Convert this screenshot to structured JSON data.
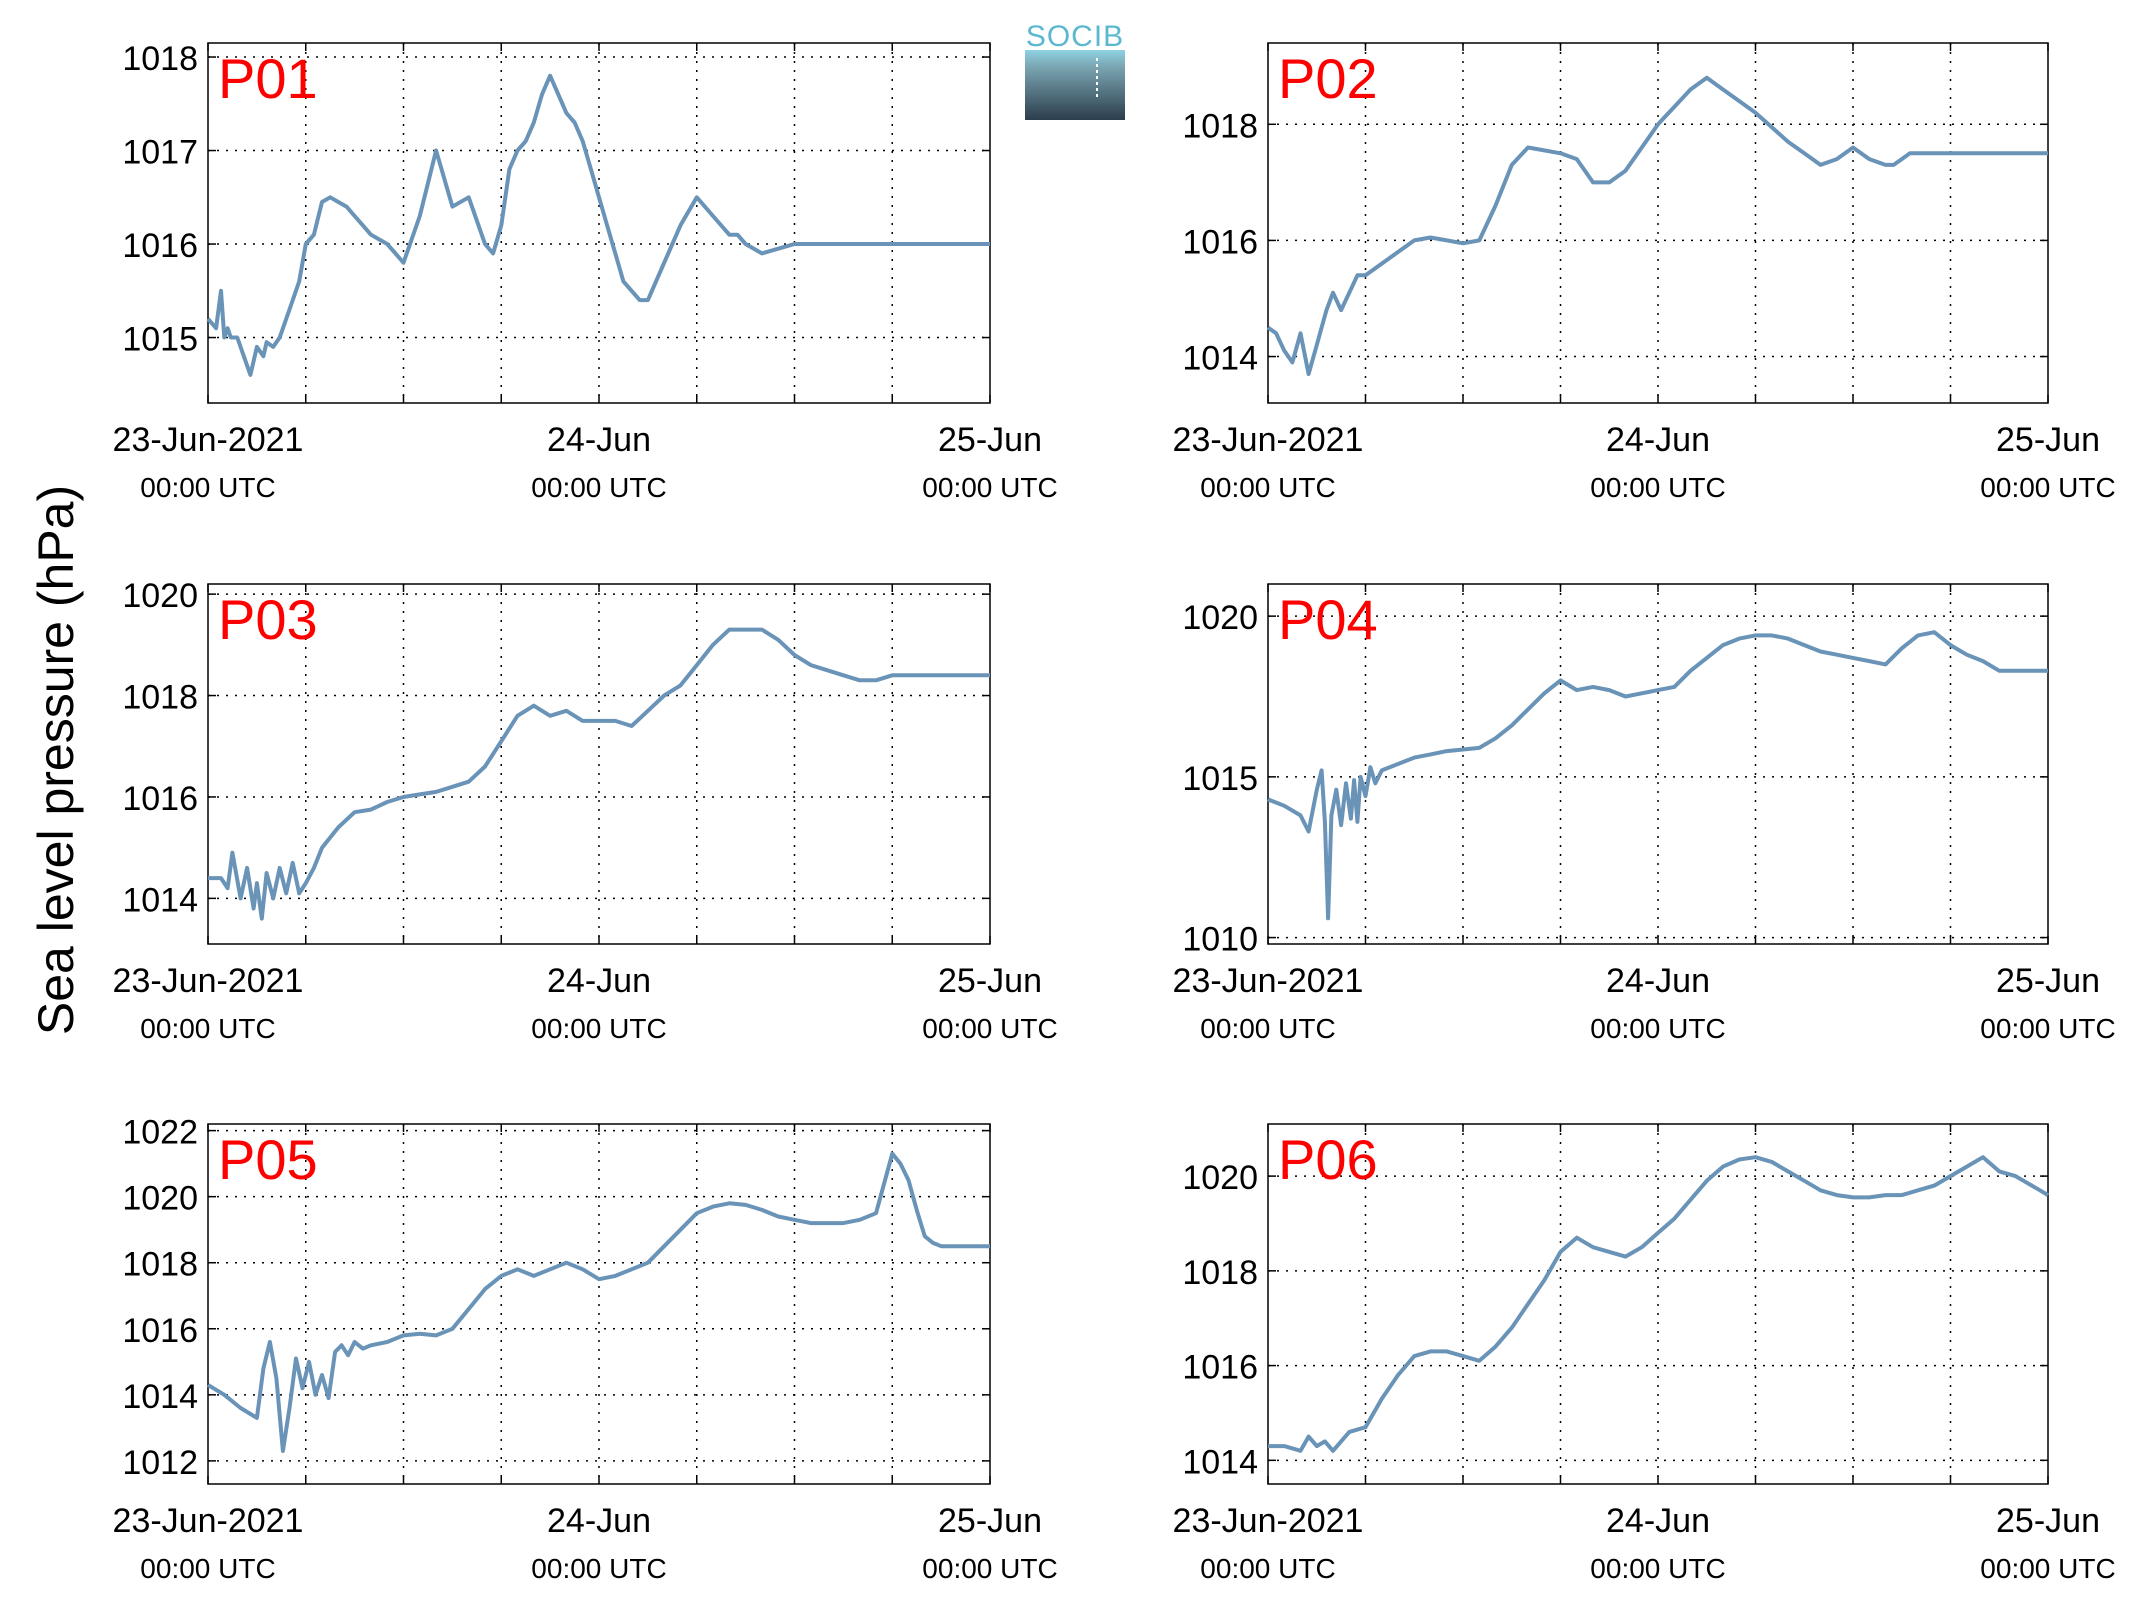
{
  "figure": {
    "ylabel": "Sea level pressure (hPa)",
    "logo_text": "SOCIB",
    "colors": {
      "line": "#6a93b8",
      "station_label": "#ff0000",
      "grid": "#000000"
    }
  },
  "chart_data": [
    {
      "type": "line",
      "title": "P01",
      "xlim": [
        0,
        48
      ],
      "ylim": [
        1014.3,
        1018.15
      ],
      "yticks": [
        1015,
        1016,
        1017,
        1018
      ],
      "xticks": [
        0,
        6,
        12,
        18,
        24,
        30,
        36,
        42,
        48
      ],
      "xticklabels": [
        {
          "x": 0,
          "date": "23-Jun-2021",
          "time": "00:00 UTC"
        },
        {
          "x": 24,
          "date": "24-Jun",
          "time": "00:00 UTC"
        },
        {
          "x": 48,
          "date": "25-Jun",
          "time": "00:00 UTC"
        }
      ],
      "grid": true,
      "series": [
        {
          "x": [
            0,
            0.5,
            0.8,
            1,
            1.2,
            1.4,
            1.8,
            2.2,
            2.6,
            3,
            3.4,
            3.6,
            4,
            4.4,
            5,
            5.6,
            6,
            6.5,
            7,
            7.5,
            8,
            8.5,
            9,
            9.5,
            10,
            11,
            12,
            13,
            14,
            15,
            16,
            17,
            17.5,
            18,
            18.5,
            19,
            19.5,
            20,
            20.5,
            21,
            21.5,
            22,
            22.5,
            23,
            23.5,
            24,
            24.5,
            25,
            25.5,
            26,
            26.5,
            27,
            28,
            29,
            30,
            31,
            32,
            32.5,
            33,
            34,
            35,
            36,
            37,
            38,
            38.5,
            39,
            39.5,
            40,
            40.5,
            41,
            42,
            43,
            44,
            45,
            46,
            46.5,
            47,
            47.5,
            48
          ],
          "y": [
            1015.2,
            1015.1,
            1015.5,
            1015.0,
            1015.1,
            1015.0,
            1015.0,
            1014.8,
            1014.6,
            1014.9,
            1014.8,
            1014.95,
            1014.9,
            1015.0,
            1015.3,
            1015.6,
            1016.0,
            1016.1,
            1016.45,
            1016.5,
            1016.45,
            1016.4,
            1016.3,
            1016.2,
            1016.1,
            1016.0,
            1015.8,
            1016.3,
            1017.0,
            1016.4,
            1016.5,
            1016.0,
            1015.9,
            1016.2,
            1016.8,
            1017.0,
            1017.1,
            1017.3,
            1017.6,
            1017.8,
            1017.6,
            1017.4,
            1017.3,
            1017.1,
            1016.8,
            1016.5,
            1016.2,
            1015.9,
            1015.6,
            1015.5,
            1015.4,
            1015.4,
            1015.8,
            1016.2,
            1016.5,
            1016.3,
            1016.1,
            1016.1,
            1016.0,
            1015.9,
            1015.95,
            1016.0,
            1016.0,
            1016.0,
            1016.0,
            1016.0,
            1016.0,
            1016.0,
            1016.0,
            1016.0,
            1016.0,
            1016.0,
            1016.0,
            1016.0,
            1016.0,
            1016.0,
            1016.0,
            1016.0,
            1016.0
          ]
        }
      ]
    },
    {
      "type": "line",
      "title": "P02",
      "xlim": [
        0,
        48
      ],
      "ylim": [
        1013.2,
        1019.4
      ],
      "yticks": [
        1014,
        1016,
        1018
      ],
      "xticks": [
        0,
        6,
        12,
        18,
        24,
        30,
        36,
        42,
        48
      ],
      "xticklabels": [
        {
          "x": 0,
          "date": "23-Jun-2021",
          "time": "00:00 UTC"
        },
        {
          "x": 24,
          "date": "24-Jun",
          "time": "00:00 UTC"
        },
        {
          "x": 48,
          "date": "25-Jun",
          "time": "00:00 UTC"
        }
      ],
      "grid": true,
      "series": [
        {
          "x": [
            0,
            0.5,
            1,
            1.5,
            2,
            2.5,
            3,
            3.3,
            3.6,
            4,
            4.5,
            5,
            5.5,
            6,
            6.5,
            7,
            8,
            9,
            10,
            11,
            12,
            13,
            14,
            15,
            16,
            17,
            18,
            19,
            20,
            21,
            22,
            23,
            24,
            25,
            26,
            27,
            28,
            29,
            30,
            31,
            32,
            33,
            34,
            35,
            36,
            37,
            38,
            38.5,
            39,
            39.5,
            40,
            40.5,
            41,
            41.5,
            42,
            42.5,
            43,
            43.5,
            44,
            44.5,
            45,
            45.5,
            46,
            46.5,
            47,
            47.5,
            48
          ],
          "y": [
            1014.5,
            1014.4,
            1014.1,
            1013.9,
            1014.4,
            1013.7,
            1014.2,
            1014.5,
            1014.8,
            1015.1,
            1014.8,
            1015.1,
            1015.4,
            1015.4,
            1015.5,
            1015.6,
            1015.8,
            1016.0,
            1016.05,
            1016.0,
            1015.95,
            1016.0,
            1016.6,
            1017.3,
            1017.6,
            1017.55,
            1017.5,
            1017.4,
            1017.0,
            1017.0,
            1017.2,
            1017.6,
            1018.0,
            1018.3,
            1018.6,
            1018.8,
            1018.6,
            1018.4,
            1018.2,
            1017.95,
            1017.7,
            1017.5,
            1017.3,
            1017.4,
            1017.6,
            1017.4,
            1017.3,
            1017.3,
            1017.4,
            1017.5,
            1017.5,
            1017.5,
            1017.5,
            1017.5,
            1017.5,
            1017.5,
            1017.5,
            1017.5,
            1017.5,
            1017.5,
            1017.5,
            1017.5,
            1017.5,
            1017.5,
            1017.5,
            1017.5,
            1017.5
          ]
        }
      ]
    },
    {
      "type": "line",
      "title": "P03",
      "xlim": [
        0,
        48
      ],
      "ylim": [
        1013.1,
        1020.2
      ],
      "yticks": [
        1014,
        1016,
        1018,
        1020
      ],
      "xticks": [
        0,
        6,
        12,
        18,
        24,
        30,
        36,
        42,
        48
      ],
      "xticklabels": [
        {
          "x": 0,
          "date": "23-Jun-2021",
          "time": "00:00 UTC"
        },
        {
          "x": 24,
          "date": "24-Jun",
          "time": "00:00 UTC"
        },
        {
          "x": 48,
          "date": "25-Jun",
          "time": "00:00 UTC"
        }
      ],
      "grid": true,
      "series": [
        {
          "x": [
            0,
            0.8,
            1.2,
            1.5,
            2,
            2.4,
            2.8,
            3,
            3.3,
            3.6,
            4,
            4.4,
            4.8,
            5.2,
            5.6,
            6,
            6.5,
            7,
            8,
            9,
            10,
            11,
            12,
            13,
            14,
            15,
            16,
            17,
            18,
            19,
            20,
            21,
            22,
            23,
            24,
            25,
            26,
            27,
            28,
            29,
            30,
            31,
            32,
            33,
            34,
            35,
            36,
            37,
            38,
            39,
            40,
            41,
            42,
            43,
            44,
            45,
            46,
            47,
            48
          ],
          "y": [
            1014.4,
            1014.4,
            1014.2,
            1014.9,
            1014.0,
            1014.6,
            1013.8,
            1014.3,
            1013.6,
            1014.5,
            1014.0,
            1014.6,
            1014.1,
            1014.7,
            1014.1,
            1014.3,
            1014.6,
            1015.0,
            1015.4,
            1015.7,
            1015.75,
            1015.9,
            1016.0,
            1016.05,
            1016.1,
            1016.2,
            1016.3,
            1016.6,
            1017.1,
            1017.6,
            1017.8,
            1017.6,
            1017.7,
            1017.5,
            1017.5,
            1017.5,
            1017.4,
            1017.7,
            1018.0,
            1018.2,
            1018.6,
            1019.0,
            1019.3,
            1019.3,
            1019.3,
            1019.1,
            1018.8,
            1018.6,
            1018.5,
            1018.4,
            1018.3,
            1018.3,
            1018.4,
            1018.4,
            1018.4,
            1018.4,
            1018.4,
            1018.4,
            1018.4
          ]
        }
      ]
    },
    {
      "type": "line",
      "title": "P04",
      "xlim": [
        0,
        48
      ],
      "ylim": [
        1009.8,
        1021.0
      ],
      "yticks": [
        1010,
        1015,
        1020
      ],
      "xticks": [
        0,
        6,
        12,
        18,
        24,
        30,
        36,
        42,
        48
      ],
      "xticklabels": [
        {
          "x": 0,
          "date": "23-Jun-2021",
          "time": "00:00 UTC"
        },
        {
          "x": 24,
          "date": "24-Jun",
          "time": "00:00 UTC"
        },
        {
          "x": 48,
          "date": "25-Jun",
          "time": "00:00 UTC"
        }
      ],
      "grid": true,
      "series": [
        {
          "x": [
            0,
            1,
            2,
            2.5,
            3,
            3.3,
            3.5,
            3.7,
            3.9,
            4.2,
            4.5,
            4.8,
            5.1,
            5.3,
            5.5,
            5.7,
            6,
            6.3,
            6.6,
            7,
            8,
            9,
            10,
            11,
            12,
            13,
            14,
            15,
            16,
            17,
            18,
            19,
            20,
            21,
            22,
            23,
            24,
            25,
            26,
            27,
            28,
            29,
            30,
            31,
            32,
            33,
            34,
            35,
            36,
            37,
            38,
            39,
            40,
            41,
            42,
            43,
            44,
            45,
            46,
            47,
            48
          ],
          "y": [
            1014.3,
            1014.1,
            1013.8,
            1013.3,
            1014.6,
            1015.2,
            1013.6,
            1010.6,
            1013.8,
            1014.6,
            1013.5,
            1014.8,
            1013.7,
            1014.9,
            1013.6,
            1015.0,
            1014.4,
            1015.3,
            1014.8,
            1015.2,
            1015.4,
            1015.6,
            1015.7,
            1015.8,
            1015.85,
            1015.9,
            1016.2,
            1016.6,
            1017.1,
            1017.6,
            1018.0,
            1017.7,
            1017.8,
            1017.7,
            1017.5,
            1017.6,
            1017.7,
            1017.8,
            1018.3,
            1018.7,
            1019.1,
            1019.3,
            1019.4,
            1019.4,
            1019.3,
            1019.1,
            1018.9,
            1018.8,
            1018.7,
            1018.6,
            1018.5,
            1019.0,
            1019.4,
            1019.5,
            1019.1,
            1018.8,
            1018.6,
            1018.3,
            1018.3,
            1018.3,
            1018.3
          ]
        }
      ]
    },
    {
      "type": "line",
      "title": "P05",
      "xlim": [
        0,
        48
      ],
      "ylim": [
        1011.3,
        1022.2
      ],
      "yticks": [
        1012,
        1014,
        1016,
        1018,
        1020,
        1022
      ],
      "xticks": [
        0,
        6,
        12,
        18,
        24,
        30,
        36,
        42,
        48
      ],
      "xticklabels": [
        {
          "x": 0,
          "date": "23-Jun-2021",
          "time": "00:00 UTC"
        },
        {
          "x": 24,
          "date": "24-Jun",
          "time": "00:00 UTC"
        },
        {
          "x": 48,
          "date": "25-Jun",
          "time": "00:00 UTC"
        }
      ],
      "grid": true,
      "series": [
        {
          "x": [
            0,
            1,
            2,
            3,
            3.4,
            3.8,
            4.2,
            4.6,
            5,
            5.4,
            5.8,
            6.2,
            6.6,
            7,
            7.4,
            7.8,
            8.2,
            8.6,
            9,
            9.5,
            10,
            11,
            12,
            13,
            14,
            15,
            16,
            17,
            18,
            19,
            20,
            21,
            22,
            23,
            24,
            25,
            26,
            27,
            28,
            29,
            30,
            31,
            32,
            33,
            34,
            35,
            36,
            37,
            38,
            39,
            40,
            41,
            42,
            42.5,
            43,
            43.5,
            44,
            44.5,
            45,
            45.5,
            46,
            46.5,
            47,
            47.5,
            48
          ],
          "y": [
            1014.3,
            1014.0,
            1013.6,
            1013.3,
            1014.8,
            1015.6,
            1014.5,
            1012.3,
            1013.6,
            1015.1,
            1014.2,
            1015.0,
            1014.0,
            1014.6,
            1013.9,
            1015.3,
            1015.5,
            1015.2,
            1015.6,
            1015.4,
            1015.5,
            1015.6,
            1015.8,
            1015.85,
            1015.8,
            1016.0,
            1016.6,
            1017.2,
            1017.6,
            1017.8,
            1017.6,
            1017.8,
            1018.0,
            1017.8,
            1017.5,
            1017.6,
            1017.8,
            1018.0,
            1018.5,
            1019.0,
            1019.5,
            1019.7,
            1019.8,
            1019.75,
            1019.6,
            1019.4,
            1019.3,
            1019.2,
            1019.2,
            1019.2,
            1019.3,
            1019.5,
            1021.3,
            1021.0,
            1020.5,
            1019.6,
            1018.8,
            1018.6,
            1018.5,
            1018.5,
            1018.5,
            1018.5,
            1018.5,
            1018.5,
            1018.5
          ]
        }
      ]
    },
    {
      "type": "line",
      "title": "P06",
      "xlim": [
        0,
        48
      ],
      "ylim": [
        1013.5,
        1021.1
      ],
      "yticks": [
        1014,
        1016,
        1018,
        1020
      ],
      "xticks": [
        0,
        6,
        12,
        18,
        24,
        30,
        36,
        42,
        48
      ],
      "xticklabels": [
        {
          "x": 0,
          "date": "23-Jun-2021",
          "time": "00:00 UTC"
        },
        {
          "x": 24,
          "date": "24-Jun",
          "time": "00:00 UTC"
        },
        {
          "x": 48,
          "date": "25-Jun",
          "time": "00:00 UTC"
        }
      ],
      "grid": true,
      "series": [
        {
          "x": [
            0,
            1,
            2,
            2.5,
            3,
            3.5,
            4,
            5,
            6,
            7,
            8,
            9,
            10,
            11,
            12,
            13,
            14,
            15,
            16,
            17,
            18,
            19,
            20,
            21,
            22,
            23,
            24,
            25,
            26,
            27,
            28,
            29,
            30,
            31,
            32,
            33,
            34,
            35,
            36,
            37,
            38,
            39,
            40,
            41,
            42,
            43,
            44,
            45,
            46,
            46.5,
            47,
            47.5,
            48
          ],
          "y": [
            1014.3,
            1014.3,
            1014.2,
            1014.5,
            1014.3,
            1014.4,
            1014.2,
            1014.6,
            1014.7,
            1015.3,
            1015.8,
            1016.2,
            1016.3,
            1016.3,
            1016.2,
            1016.1,
            1016.4,
            1016.8,
            1017.3,
            1017.8,
            1018.4,
            1018.7,
            1018.5,
            1018.4,
            1018.3,
            1018.5,
            1018.8,
            1019.1,
            1019.5,
            1019.9,
            1020.2,
            1020.35,
            1020.4,
            1020.3,
            1020.1,
            1019.9,
            1019.7,
            1019.6,
            1019.55,
            1019.55,
            1019.6,
            1019.6,
            1019.7,
            1019.8,
            1020.0,
            1020.2,
            1020.4,
            1020.1,
            1020.0,
            1019.9,
            1019.8,
            1019.7,
            1019.6
          ]
        }
      ]
    }
  ]
}
